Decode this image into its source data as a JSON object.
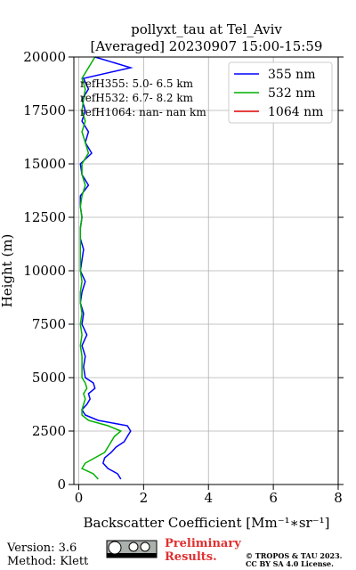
{
  "chart_data": {
    "type": "line",
    "title": "pollyxt_tau at Tel_Aviv",
    "subtitle": "[Averaged] 20230907 15:00-15:59",
    "xlabel": "Backscatter Coefficient [Mm⁻¹∗sr⁻¹]",
    "ylabel": "Height (m)",
    "annotations": [
      "refH355:  5.0- 6.5 km",
      "refH532:  6.7- 8.2 km",
      "refH1064:  nan- nan km"
    ],
    "heights": [
      250,
      500,
      750,
      1000,
      1250,
      1500,
      1750,
      2000,
      2250,
      2500,
      2750,
      3000,
      3250,
      3500,
      3750,
      4000,
      4250,
      4500,
      4750,
      5000,
      5500,
      6000,
      6500,
      7000,
      7500,
      8000,
      8500,
      9000,
      9500,
      10000,
      10500,
      11000,
      11500,
      12000,
      12500,
      13000,
      13500,
      14000,
      14500,
      15000,
      15500,
      16000,
      16500,
      17000,
      17500,
      18000,
      18500,
      19000,
      19500,
      20000
    ],
    "series": [
      {
        "name": "355 nm",
        "color": "#0000ff",
        "values": [
          1.3,
          1.2,
          0.9,
          0.75,
          0.8,
          1.0,
          1.15,
          1.4,
          1.5,
          1.6,
          1.5,
          0.6,
          0.2,
          0.1,
          0.25,
          0.35,
          0.3,
          0.5,
          0.45,
          0.2,
          0.15,
          0.2,
          0.1,
          0.25,
          0.1,
          0.15,
          0.05,
          0.1,
          0.2,
          0.05,
          0.1,
          0.15,
          0.05,
          0.05,
          0.1,
          0.05,
          0.05,
          0.3,
          0.1,
          0.05,
          0.4,
          0.2,
          0.3,
          0.1,
          0.2,
          0.1,
          0.3,
          0.15,
          1.6,
          0.5
        ]
      },
      {
        "name": "532 nm",
        "color": "#00b000",
        "values": [
          0.6,
          0.45,
          0.1,
          0.2,
          0.5,
          0.8,
          0.9,
          1.0,
          1.1,
          1.3,
          0.9,
          0.3,
          0.1,
          0.1,
          0.15,
          0.2,
          0.15,
          0.25,
          0.2,
          0.1,
          0.1,
          0.1,
          0.05,
          0.1,
          0.05,
          0.1,
          0.05,
          0.05,
          0.1,
          0.05,
          0.05,
          0.05,
          0.05,
          0.05,
          0.1,
          0.05,
          0.1,
          0.2,
          0.1,
          0.1,
          0.3,
          0.2,
          0.1,
          0.2,
          0.1,
          0.15,
          0.2,
          0.1,
          0.3,
          0.5
        ]
      },
      {
        "name": "1064 nm",
        "color": "#e00000",
        "values": [
          null,
          null,
          null,
          null,
          null,
          null,
          null,
          null,
          null,
          null,
          null,
          null,
          null,
          null,
          null,
          null,
          null,
          null,
          null,
          null,
          null,
          null,
          null,
          null,
          null,
          null,
          null,
          null,
          null,
          null,
          null,
          null,
          null,
          null,
          null,
          null,
          null,
          null,
          null,
          null,
          null,
          null,
          null,
          null,
          null,
          null,
          null,
          null,
          null,
          null
        ]
      }
    ],
    "xlim": [
      -0.15,
      8
    ],
    "xticks": [
      0,
      2,
      4,
      6,
      8
    ],
    "ylim": [
      0,
      20000
    ],
    "yticks": [
      0,
      2500,
      5000,
      7500,
      10000,
      12500,
      15000,
      17500,
      20000
    ],
    "grid": true,
    "legend": "upper right",
    "footer": {
      "version": "Version: 3.6",
      "method": "Method: Klett",
      "preliminary": "Preliminary",
      "results": "Results.",
      "copyright": "© TROPOS & TAU 2023.",
      "license": "CC BY SA 4.0 License."
    }
  }
}
